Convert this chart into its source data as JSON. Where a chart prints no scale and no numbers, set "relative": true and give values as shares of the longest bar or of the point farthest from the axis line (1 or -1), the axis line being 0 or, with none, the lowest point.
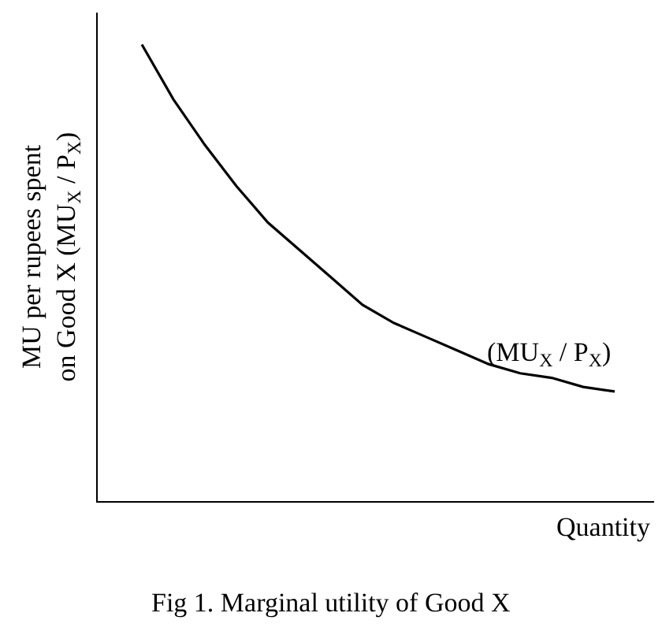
{
  "chart_data": {
    "type": "line",
    "relative": true,
    "title": "Fig 1. Marginal utility of Good X",
    "xlabel": "Quantity",
    "ylabel": "MU per rupees spent\non Good X (MU$_{X}$ / P$_{X}$)",
    "categories": [
      null,
      null,
      null,
      null,
      null,
      null,
      null,
      null,
      null,
      null,
      null,
      null,
      null,
      null,
      null,
      null
    ],
    "series": [
      {
        "name": "(MU$_{X}$ / P$_{X}$)",
        "color": "#000000",
        "values": [
          1.0,
          0.88,
          0.78,
          0.69,
          0.61,
          0.55,
          0.49,
          0.43,
          0.39,
          0.36,
          0.33,
          0.3,
          0.28,
          0.27,
          0.25,
          0.24
        ]
      }
    ],
    "legend": false,
    "marker": "none",
    "line_style": "solid"
  }
}
